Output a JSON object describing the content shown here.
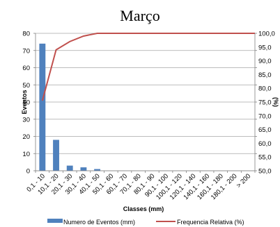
{
  "chart_data": {
    "type": "bar",
    "title": "Março",
    "xlabel": "Classes (mm)",
    "ylabel": "Eventos",
    "y2label": "(%)",
    "categories": [
      "0,1 - 10",
      "10,1 - 20",
      "20,1 - 30",
      "30,1 - 40",
      "40,1 - 50",
      "50,1 - 60",
      "60,1 - 70",
      "70,1 - 80",
      "80,1 - 90",
      "90,1 - 100",
      "100,1 - 120",
      "120,1 - 140",
      "140,1 - 160",
      "160,1 - 180",
      "180,1 - 200",
      "> 200"
    ],
    "ylim": [
      0,
      80
    ],
    "yticks": [
      "0",
      "10",
      "20",
      "30",
      "40",
      "50",
      "60",
      "70",
      "80"
    ],
    "y2lim": [
      50,
      100
    ],
    "y2ticks": [
      "50,0",
      "55,0",
      "60,0",
      "65,0",
      "70,0",
      "75,0",
      "80,0",
      "85,0",
      "90,0",
      "95,0",
      "100,0"
    ],
    "series": [
      {
        "name": "Numero de Eventos (mm)",
        "type": "bar",
        "axis": "left",
        "color": "#4f81bd",
        "values": [
          74,
          18,
          3,
          2,
          1,
          0,
          0,
          0,
          0,
          0,
          0,
          0,
          0,
          0,
          0,
          0
        ]
      },
      {
        "name": "Frequencia Relativa (%)",
        "type": "line",
        "axis": "right",
        "color": "#c0504d",
        "values": [
          75.5,
          94.0,
          97.0,
          99.0,
          100.0,
          100.0,
          100.0,
          100.0,
          100.0,
          100.0,
          100.0,
          100.0,
          100.0,
          100.0,
          100.0,
          100.0
        ]
      }
    ],
    "grid": true,
    "legend": "bottom"
  }
}
